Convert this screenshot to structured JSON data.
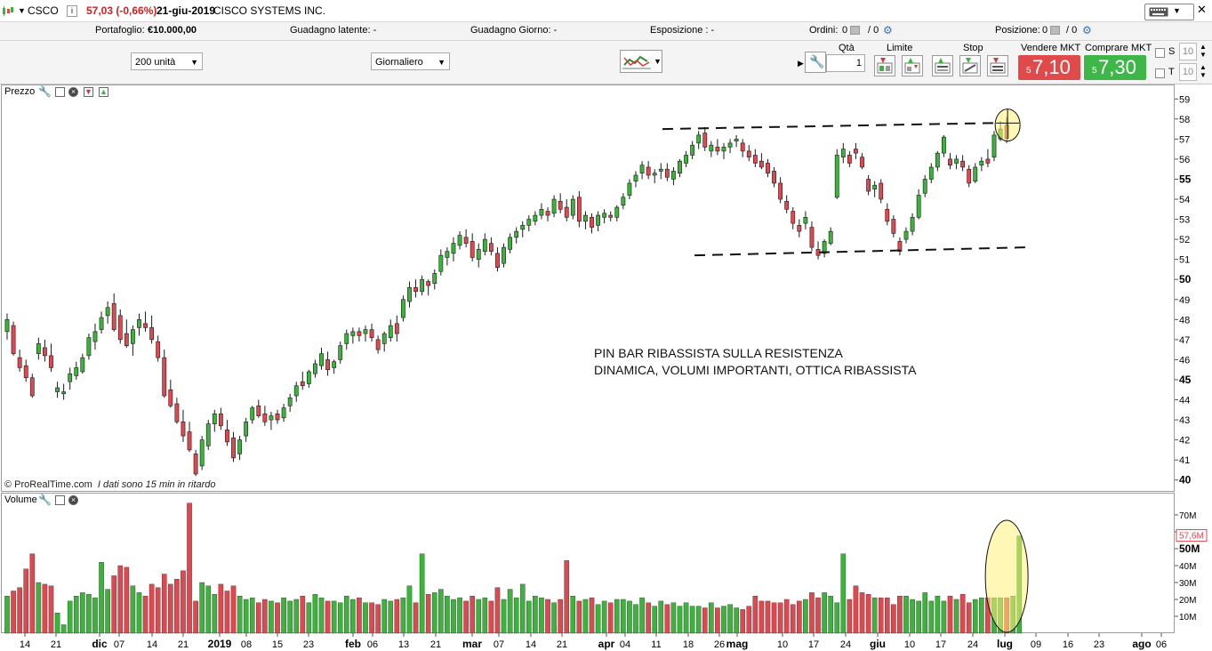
{
  "titlebar": {
    "symbol": "CSCO",
    "info_icon": "i",
    "price_change": "57,03 (-0,66%)",
    "date": "21-giu-2019",
    "company": "CISCO SYSTEMS INC."
  },
  "infobar": {
    "portafoglio_label": "Portafoglio:",
    "portafoglio_value": "€10.000,00",
    "guadagno_latente": "Guadagno latente: -",
    "guadagno_giorno": "Guadagno Giorno: -",
    "esposizione": "Esposizione : -",
    "ordini_label": "Ordini:",
    "ordini_value_1": "0",
    "ordini_value_2": "/ 0",
    "posizione_label": "Posizione:",
    "posizione_value_1": "0",
    "posizione_value_2": "/ 0"
  },
  "toolbar": {
    "units_select": "200 unità",
    "period_select": "Giornaliero",
    "qta_label": "Qtà",
    "qta_value": "1",
    "limite_label": "Limite",
    "stop_label": "Stop",
    "vendere_label": "Vendere MKT",
    "comprare_label": "Comprare MKT",
    "sell_small": "5",
    "sell_big": "7,10",
    "buy_small": "5",
    "buy_big": "7,30",
    "s_label": "S",
    "t_label": "T",
    "s_value": "10",
    "t_value": "10",
    "sell_color": "#e14a4a",
    "buy_color": "#3fb648"
  },
  "price_panel": {
    "label": "Prezzo",
    "annotation_line1": "PIN BAR RIBASSISTA SULLA RESISTENZA",
    "annotation_line2": "DINAMICA, VOLUMI IMPORTANTI, OTTICA RIBASSISTA",
    "copyright_brand": "© ProRealTime.com",
    "copyright_delay": "I dati sono 15 min in ritardo"
  },
  "volume_panel": {
    "label": "Volume",
    "last_value_label": "57,6M"
  },
  "chart_data": [
    {
      "type": "candlestick",
      "up_color": "#3cb43c",
      "down_color": "#e0484f",
      "ylim": [
        39.5,
        59.5
      ],
      "yticks": [
        40,
        41,
        42,
        43,
        44,
        45,
        46,
        47,
        48,
        49,
        50,
        51,
        52,
        53,
        54,
        55,
        56,
        57,
        58,
        59
      ],
      "ytick_labels": [
        "40",
        "41",
        "42",
        "43",
        "44",
        "45",
        "46",
        "47",
        "48",
        "49",
        "50",
        "51",
        "52",
        "53",
        "54",
        "55",
        "56",
        "57",
        "58",
        "59"
      ],
      "bold_yticks": [
        40,
        45,
        50,
        55
      ],
      "xtick_labels": [
        "14",
        "21",
        "dic",
        "07",
        "14",
        "21",
        "2019",
        "08",
        "15",
        "23",
        "feb",
        "06",
        "13",
        "21",
        "mar",
        "07",
        "14",
        "21",
        "apr",
        "04",
        "11",
        "18",
        "26",
        "mag",
        "10",
        "17",
        "24",
        "giu",
        "10",
        "17",
        "24",
        "lug",
        "09",
        "16",
        "23",
        "ago",
        "06"
      ],
      "bold_xticks": [
        "dic",
        "2019",
        "feb",
        "mar",
        "apr",
        "mag",
        "giu",
        "lug",
        "ago"
      ],
      "candles": [
        [
          47.4,
          48.3,
          47.0,
          48.0
        ],
        [
          47.7,
          47.9,
          46.2,
          46.3
        ],
        [
          46.1,
          46.5,
          45.4,
          45.6
        ],
        [
          45.7,
          46.0,
          44.9,
          45.1
        ],
        [
          45.1,
          45.3,
          44.1,
          44.2
        ],
        [
          46.3,
          47.1,
          46.0,
          46.8
        ],
        [
          46.6,
          47.0,
          45.9,
          46.2
        ],
        [
          46.2,
          46.8,
          45.4,
          45.6
        ],
        [
          44.4,
          44.9,
          44.1,
          44.6
        ],
        [
          44.3,
          44.8,
          44.0,
          44.4
        ],
        [
          44.9,
          45.6,
          44.5,
          45.3
        ],
        [
          45.2,
          45.9,
          45.0,
          45.6
        ],
        [
          45.4,
          46.3,
          45.3,
          46.1
        ],
        [
          46.2,
          47.3,
          46.0,
          47.1
        ],
        [
          46.9,
          47.8,
          46.5,
          47.4
        ],
        [
          47.5,
          48.4,
          47.3,
          48.1
        ],
        [
          48.2,
          48.9,
          47.8,
          48.6
        ],
        [
          48.8,
          49.3,
          47.4,
          47.5
        ],
        [
          48.2,
          48.5,
          46.8,
          47.0
        ],
        [
          47.3,
          48.0,
          46.6,
          46.7
        ],
        [
          46.8,
          47.7,
          46.2,
          47.5
        ],
        [
          47.6,
          48.3,
          47.2,
          48.0
        ],
        [
          47.8,
          48.4,
          47.4,
          47.6
        ],
        [
          47.6,
          48.2,
          46.8,
          47.0
        ],
        [
          46.9,
          47.2,
          45.9,
          46.1
        ],
        [
          46.1,
          46.5,
          44.1,
          44.2
        ],
        [
          44.5,
          45.0,
          43.6,
          43.7
        ],
        [
          43.8,
          44.1,
          42.8,
          42.9
        ],
        [
          42.9,
          43.5,
          41.9,
          42.2
        ],
        [
          42.4,
          42.9,
          41.4,
          41.5
        ],
        [
          41.3,
          41.5,
          40.2,
          40.3
        ],
        [
          40.7,
          42.2,
          40.5,
          42.0
        ],
        [
          41.7,
          43.0,
          41.5,
          42.8
        ],
        [
          42.8,
          43.5,
          42.4,
          43.3
        ],
        [
          43.3,
          43.6,
          42.5,
          42.7
        ],
        [
          42.5,
          43.0,
          41.7,
          41.9
        ],
        [
          42.1,
          42.4,
          40.9,
          41.1
        ],
        [
          41.3,
          42.2,
          41.0,
          42.0
        ],
        [
          42.2,
          43.1,
          41.9,
          42.9
        ],
        [
          43.0,
          43.7,
          42.8,
          43.6
        ],
        [
          43.7,
          44.0,
          43.1,
          43.2
        ],
        [
          43.3,
          43.7,
          42.7,
          42.9
        ],
        [
          43.0,
          43.4,
          42.5,
          43.2
        ],
        [
          43.3,
          43.5,
          42.8,
          43.0
        ],
        [
          43.1,
          43.8,
          42.9,
          43.6
        ],
        [
          43.7,
          44.3,
          43.4,
          44.1
        ],
        [
          44.2,
          44.9,
          43.9,
          44.7
        ],
        [
          44.9,
          45.4,
          44.5,
          44.7
        ],
        [
          44.8,
          45.5,
          44.6,
          45.4
        ],
        [
          45.3,
          46.0,
          45.1,
          45.8
        ],
        [
          45.7,
          46.6,
          45.5,
          46.3
        ],
        [
          46.0,
          46.4,
          45.2,
          45.5
        ],
        [
          45.6,
          46.0,
          45.3,
          45.9
        ],
        [
          46.0,
          46.9,
          45.8,
          46.7
        ],
        [
          46.8,
          47.5,
          46.5,
          47.3
        ],
        [
          47.2,
          47.6,
          46.8,
          47.4
        ],
        [
          47.4,
          47.6,
          46.9,
          47.2
        ],
        [
          47.3,
          47.7,
          46.9,
          47.5
        ],
        [
          47.5,
          47.8,
          46.9,
          47.1
        ],
        [
          47.0,
          47.2,
          46.3,
          46.5
        ],
        [
          46.8,
          47.4,
          46.4,
          47.3
        ],
        [
          47.1,
          48.0,
          46.9,
          47.7
        ],
        [
          47.8,
          48.2,
          46.9,
          47.3
        ],
        [
          48.1,
          49.2,
          47.9,
          49.0
        ],
        [
          48.9,
          49.9,
          48.6,
          49.6
        ],
        [
          49.6,
          50.0,
          49.1,
          49.4
        ],
        [
          49.4,
          50.2,
          49.2,
          50.0
        ],
        [
          49.9,
          50.0,
          49.2,
          49.7
        ],
        [
          49.8,
          50.5,
          49.5,
          50.3
        ],
        [
          50.4,
          51.5,
          50.2,
          51.2
        ],
        [
          51.1,
          51.6,
          50.7,
          51.4
        ],
        [
          51.3,
          52.1,
          50.9,
          51.8
        ],
        [
          51.7,
          52.4,
          51.5,
          52.2
        ],
        [
          52.1,
          52.5,
          51.6,
          51.8
        ],
        [
          51.9,
          52.3,
          50.9,
          51.1
        ],
        [
          51.0,
          51.8,
          50.6,
          51.5
        ],
        [
          51.4,
          52.3,
          51.2,
          52.0
        ],
        [
          51.8,
          52.1,
          51.2,
          51.4
        ],
        [
          51.3,
          51.6,
          50.4,
          50.6
        ],
        [
          50.8,
          51.8,
          50.6,
          51.6
        ],
        [
          51.5,
          52.3,
          51.3,
          52.1
        ],
        [
          52.1,
          52.6,
          51.8,
          52.4
        ],
        [
          52.5,
          52.9,
          52.1,
          52.7
        ],
        [
          52.7,
          53.2,
          52.4,
          53.0
        ],
        [
          52.9,
          53.4,
          52.7,
          53.2
        ],
        [
          53.2,
          53.8,
          53.0,
          53.5
        ],
        [
          53.4,
          53.6,
          52.9,
          53.2
        ],
        [
          53.3,
          54.2,
          53.1,
          54.0
        ],
        [
          53.9,
          54.3,
          53.3,
          53.5
        ],
        [
          53.6,
          54.0,
          52.9,
          53.1
        ],
        [
          53.2,
          54.2,
          53.0,
          54.0
        ],
        [
          54.1,
          54.4,
          52.6,
          52.9
        ],
        [
          52.9,
          53.4,
          52.5,
          53.2
        ],
        [
          53.1,
          53.3,
          52.3,
          52.6
        ],
        [
          52.7,
          53.4,
          52.4,
          53.2
        ],
        [
          53.1,
          53.5,
          52.8,
          53.3
        ],
        [
          53.2,
          53.4,
          52.9,
          53.1
        ],
        [
          53.1,
          53.7,
          52.9,
          53.6
        ],
        [
          53.7,
          54.3,
          53.5,
          54.1
        ],
        [
          54.2,
          55.0,
          54.0,
          54.8
        ],
        [
          54.9,
          55.4,
          54.6,
          55.2
        ],
        [
          55.3,
          55.9,
          55.0,
          55.7
        ],
        [
          55.6,
          55.9,
          55.0,
          55.2
        ],
        [
          55.2,
          55.5,
          54.8,
          55.3
        ],
        [
          55.4,
          55.8,
          55.0,
          55.5
        ],
        [
          55.5,
          55.8,
          54.9,
          55.1
        ],
        [
          55.0,
          55.6,
          54.7,
          55.4
        ],
        [
          55.3,
          56.0,
          55.1,
          55.9
        ],
        [
          55.8,
          56.4,
          55.6,
          56.2
        ],
        [
          56.2,
          56.9,
          56.0,
          56.7
        ],
        [
          56.8,
          57.4,
          56.5,
          57.2
        ],
        [
          57.3,
          57.6,
          56.4,
          56.6
        ],
        [
          56.4,
          56.9,
          56.1,
          56.7
        ],
        [
          56.6,
          57.0,
          56.2,
          56.4
        ],
        [
          56.4,
          56.8,
          56.0,
          56.6
        ],
        [
          56.6,
          57.0,
          56.3,
          56.8
        ],
        [
          56.9,
          57.2,
          56.6,
          57.0
        ],
        [
          56.8,
          57.0,
          56.1,
          56.4
        ],
        [
          56.4,
          56.7,
          55.9,
          56.1
        ],
        [
          56.2,
          56.5,
          55.6,
          55.8
        ],
        [
          55.9,
          56.3,
          55.5,
          55.6
        ],
        [
          55.8,
          56.0,
          55.1,
          55.3
        ],
        [
          55.4,
          55.6,
          54.6,
          54.8
        ],
        [
          54.8,
          55.1,
          53.8,
          54.0
        ],
        [
          53.9,
          54.2,
          53.3,
          53.5
        ],
        [
          53.4,
          53.6,
          52.5,
          52.8
        ],
        [
          52.7,
          53.0,
          52.1,
          52.4
        ],
        [
          52.8,
          53.4,
          52.5,
          53.1
        ],
        [
          52.6,
          52.9,
          51.4,
          51.6
        ],
        [
          51.5,
          51.9,
          51.0,
          51.2
        ],
        [
          51.3,
          52.0,
          51.1,
          51.9
        ],
        [
          51.8,
          52.6,
          51.7,
          52.4
        ],
        [
          54.1,
          56.5,
          54.0,
          56.2
        ],
        [
          56.1,
          56.8,
          55.8,
          56.5
        ],
        [
          56.2,
          56.4,
          55.6,
          55.8
        ],
        [
          56.5,
          56.8,
          56.0,
          56.3
        ],
        [
          56.1,
          56.3,
          55.5,
          55.6
        ],
        [
          55.0,
          55.2,
          54.2,
          54.4
        ],
        [
          54.5,
          54.9,
          54.1,
          54.7
        ],
        [
          54.8,
          55.0,
          53.8,
          54.0
        ],
        [
          53.5,
          53.8,
          52.7,
          52.9
        ],
        [
          53.0,
          53.2,
          52.1,
          52.3
        ],
        [
          51.9,
          52.1,
          51.2,
          51.4
        ],
        [
          52.0,
          52.6,
          51.8,
          52.4
        ],
        [
          52.4,
          53.3,
          52.2,
          53.1
        ],
        [
          53.1,
          54.5,
          53.0,
          54.2
        ],
        [
          54.3,
          55.2,
          54.1,
          55.0
        ],
        [
          55.0,
          55.8,
          54.8,
          55.6
        ],
        [
          55.6,
          56.4,
          55.4,
          56.3
        ],
        [
          56.3,
          57.2,
          56.1,
          57.1
        ],
        [
          56.0,
          56.3,
          55.5,
          55.7
        ],
        [
          55.8,
          56.2,
          55.5,
          56.0
        ],
        [
          55.9,
          56.2,
          55.4,
          55.6
        ],
        [
          55.5,
          55.7,
          54.6,
          54.8
        ],
        [
          54.9,
          55.8,
          54.8,
          55.6
        ],
        [
          55.7,
          56.1,
          55.4,
          55.9
        ],
        [
          56.0,
          56.5,
          55.6,
          55.8
        ],
        [
          56.1,
          57.4,
          55.9,
          57.2
        ],
        [
          57.0,
          57.9,
          56.9,
          57.5
        ],
        [
          57.7,
          58.1,
          56.8,
          57.03
        ]
      ],
      "resistance_line": [
        [
          0.0,
          57.5
        ],
        [
          1.0,
          57.8
        ]
      ],
      "support_line": [
        [
          0.0,
          51.2
        ],
        [
          1.0,
          51.6
        ]
      ]
    },
    {
      "type": "bar",
      "ylim": [
        0,
        80
      ],
      "yticks": [
        10,
        20,
        30,
        40,
        50,
        60,
        70
      ],
      "ytick_labels": [
        "10M",
        "20M",
        "30M",
        "40M",
        "50M",
        "60M",
        "70M"
      ],
      "bold_yticks": [
        50
      ],
      "unit": "M",
      "values": [
        22,
        25,
        27,
        38,
        47,
        30,
        29,
        28,
        12,
        5,
        19,
        22,
        24,
        23,
        21,
        42,
        26,
        34,
        40,
        39,
        28,
        24,
        22,
        29,
        27,
        35,
        29,
        32,
        37,
        77,
        19,
        30,
        28,
        23,
        29,
        25,
        28,
        22,
        20,
        21,
        18,
        20,
        19,
        18,
        21,
        19,
        20,
        22,
        18,
        23,
        21,
        19,
        19,
        18,
        22,
        20,
        21,
        18,
        18,
        17,
        20,
        19,
        20,
        21,
        28,
        18,
        47,
        23,
        24,
        26,
        22,
        20,
        21,
        19,
        22,
        20,
        21,
        19,
        27,
        20,
        26,
        21,
        29,
        19,
        22,
        21,
        20,
        18,
        20,
        43,
        22,
        19,
        20,
        21,
        17,
        19,
        18,
        20,
        20,
        19,
        17,
        21,
        18,
        16,
        19,
        17,
        18,
        16,
        18,
        16,
        16,
        15,
        18,
        15,
        16,
        17,
        15,
        14,
        16,
        22,
        19,
        19,
        18,
        18,
        20,
        17,
        19,
        20,
        24,
        21,
        24,
        22,
        18,
        47,
        20,
        28,
        24,
        23,
        21,
        21,
        21,
        17,
        22,
        22,
        20,
        19,
        24,
        19,
        22,
        19,
        22,
        20,
        23,
        18,
        20,
        21,
        21,
        21,
        21,
        21,
        22,
        57.6
      ]
    }
  ]
}
